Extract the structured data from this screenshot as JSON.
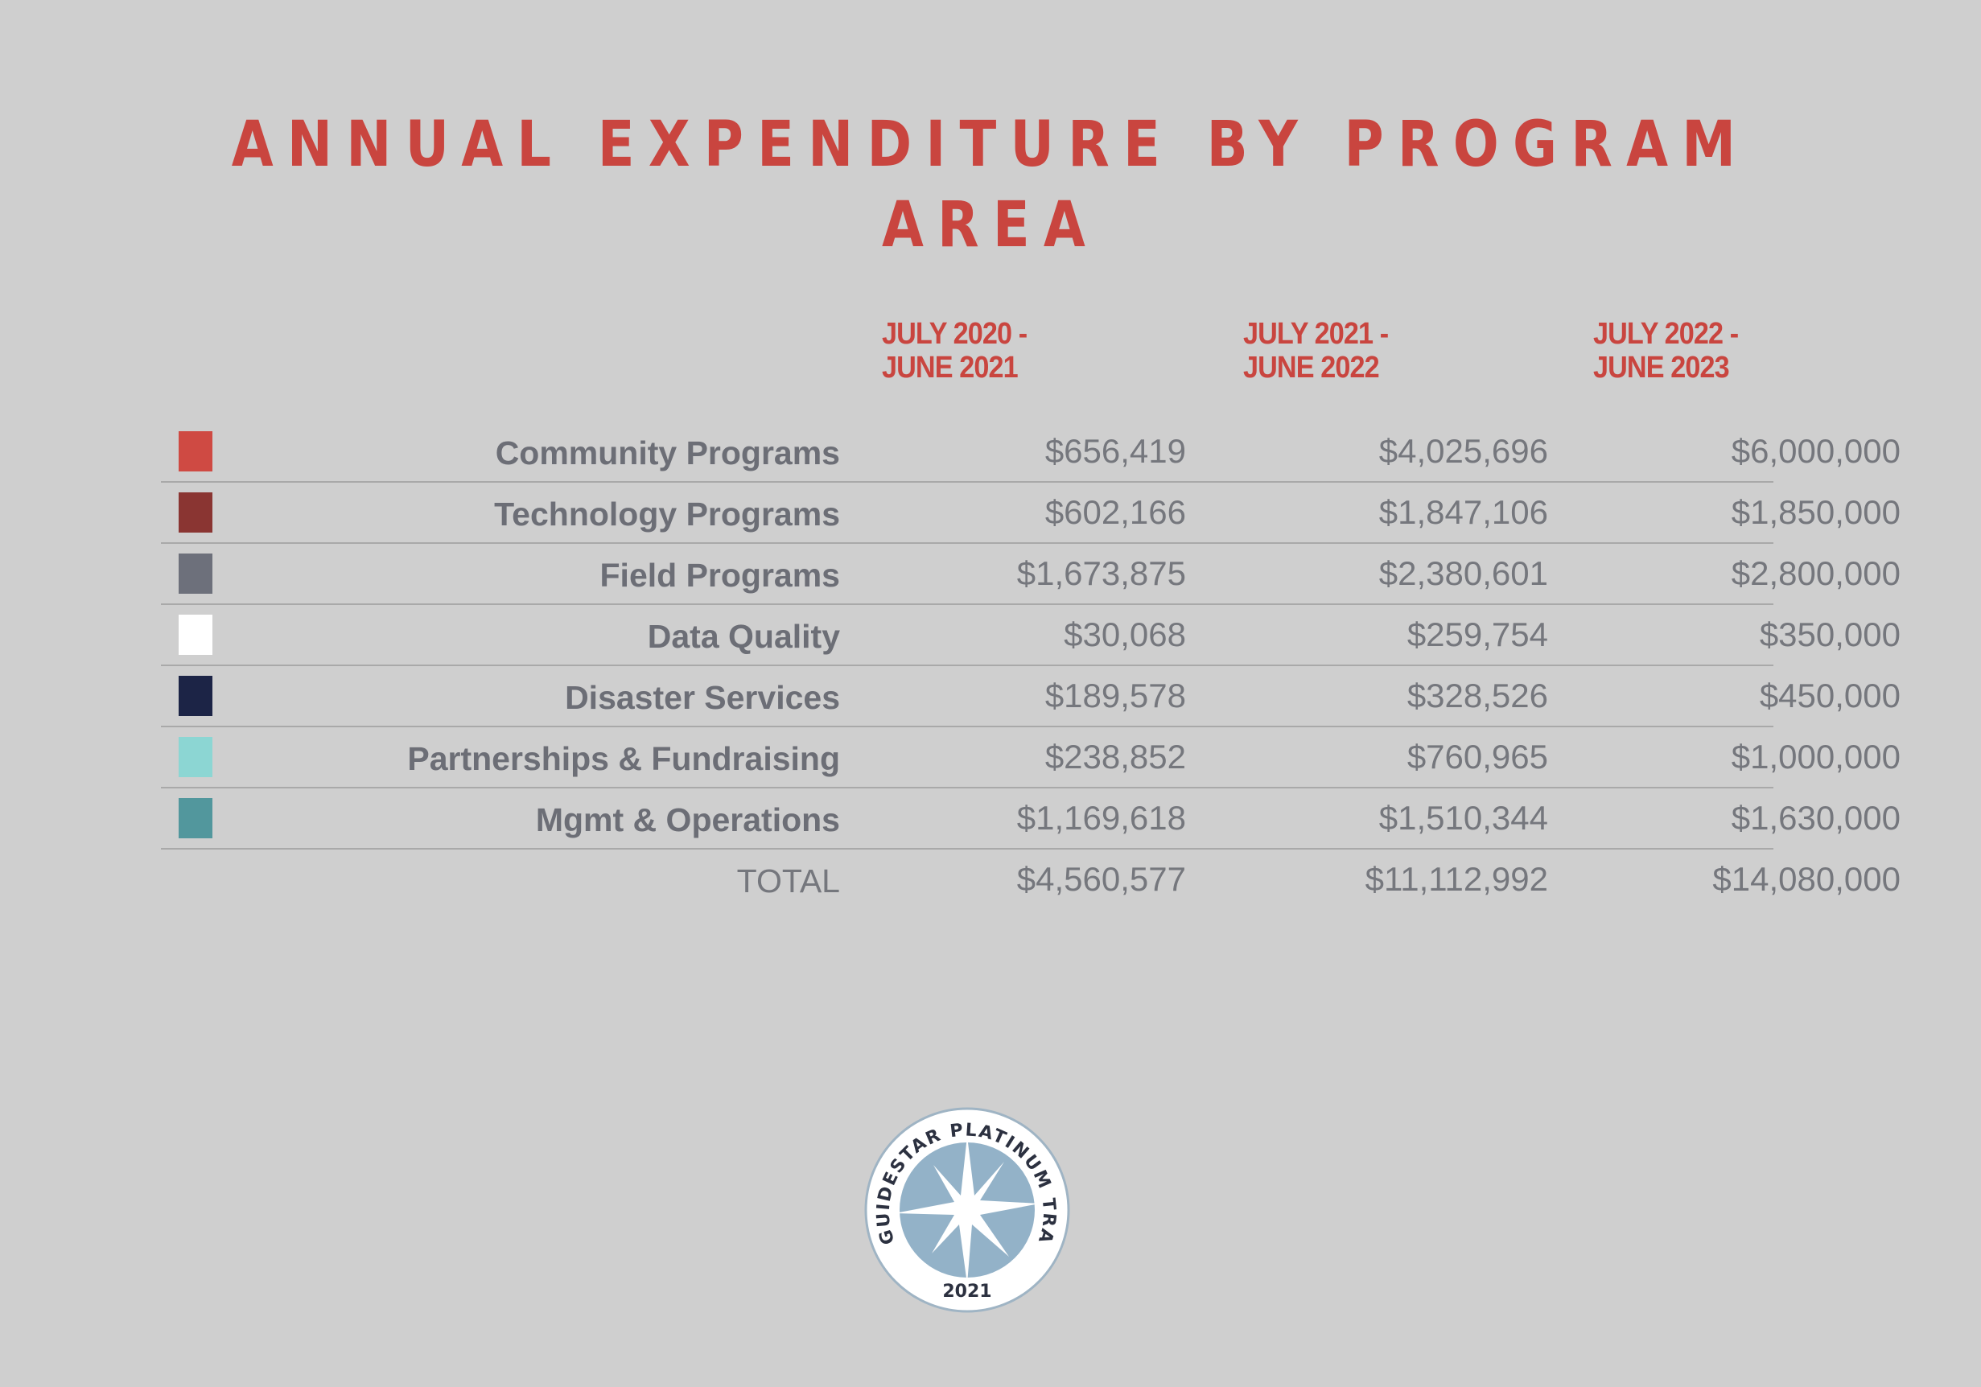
{
  "chart_data": {
    "type": "table",
    "title": "ANNUAL EXPENDITURE BY PROGRAM AREA",
    "columns": [
      {
        "line1": "JULY 2020 -",
        "line2": "JUNE 2021"
      },
      {
        "line1": "JULY 2021 -",
        "line2": "JUNE 2022"
      },
      {
        "line1": "JULY 2022 -",
        "line2": "JUNE 2023"
      }
    ],
    "rows": [
      {
        "label": "Community Programs",
        "color": "#cf4a43",
        "values": [
          "$656,419",
          "$4,025,696",
          "$6,000,000"
        ]
      },
      {
        "label": "Technology Programs",
        "color": "#8a3532",
        "values": [
          "$602,166",
          "$1,847,106",
          "$1,850,000"
        ]
      },
      {
        "label": "Field Programs",
        "color": "#6d707b",
        "values": [
          "$1,673,875",
          "$2,380,601",
          "$2,800,000"
        ]
      },
      {
        "label": "Data Quality",
        "color": "#ffffff",
        "values": [
          "$30,068",
          "$259,754",
          "$350,000"
        ]
      },
      {
        "label": "Disaster Services",
        "color": "#1c2446",
        "values": [
          "$189,578",
          "$328,526",
          "$450,000"
        ]
      },
      {
        "label": "Partnerships & Fundraising",
        "color": "#8cd6d3",
        "values": [
          "$238,852",
          "$760,965",
          "$1,000,000"
        ]
      },
      {
        "label": "Mgmt & Operations",
        "color": "#52979d",
        "values": [
          "$1,169,618",
          "$1,510,344",
          "$1,630,000"
        ]
      }
    ],
    "total": {
      "label": "TOTAL",
      "values": [
        "$4,560,577",
        "$11,112,992",
        "$14,080,000"
      ]
    }
  },
  "seal": {
    "arc_text": "GUIDESTAR PLATINUM TRANSPARENCY",
    "year": "2021"
  }
}
